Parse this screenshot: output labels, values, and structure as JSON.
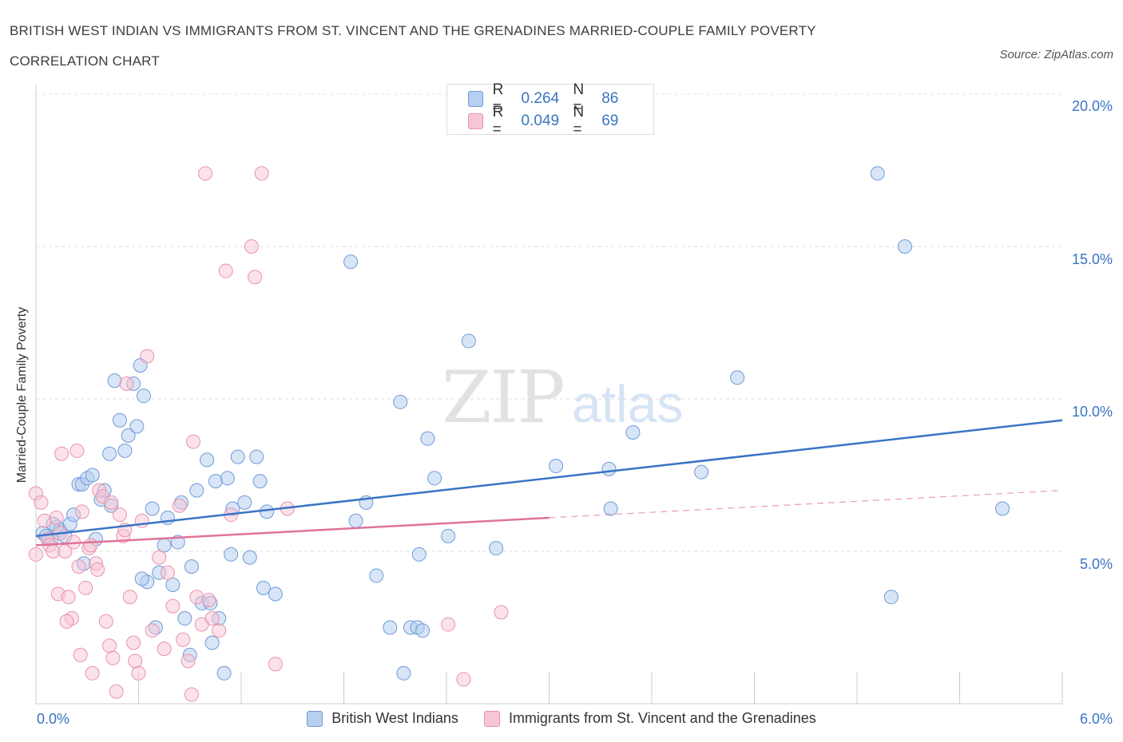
{
  "title": "BRITISH WEST INDIAN VS IMMIGRANTS FROM ST. VINCENT AND THE GRENADINES MARRIED-COUPLE FAMILY POVERTY CORRELATION CHART",
  "source": "Source: ZipAtlas.com",
  "watermark": {
    "zip": "ZIP",
    "atlas": "atlas"
  },
  "colors": {
    "blue": "#3a74c4",
    "blue_fill": "#b7cff0",
    "pink": "#e07399",
    "pink_fill": "#f7c6d5",
    "grid": "#dddddd"
  },
  "legend": {
    "r_label": "R =",
    "n_label": "N =",
    "rows": [
      {
        "r": "0.264",
        "n": "86"
      },
      {
        "r": "0.049",
        "n": "69"
      }
    ]
  },
  "chart_data": {
    "type": "scatter",
    "xlabel": "",
    "ylabel": "Married-Couple Family Poverty",
    "xlim": [
      0,
      6
    ],
    "ylim": [
      0,
      20
    ],
    "x_ticks": [
      "0.0%",
      "6.0%"
    ],
    "y_ticks": [
      "5.0%",
      "10.0%",
      "15.0%",
      "20.0%"
    ],
    "y_tick_values": [
      5,
      10,
      15,
      20
    ],
    "grid": true,
    "legend_position": "bottom",
    "series": [
      {
        "name": "British West Indians",
        "trend": {
          "x0": 0.0,
          "y0": 5.5,
          "x1": 6.0,
          "y1": 9.3,
          "dash_from": null
        },
        "points": [
          [
            0.04,
            5.6
          ],
          [
            0.07,
            5.4
          ],
          [
            0.09,
            5.4
          ],
          [
            0.12,
            5.8
          ],
          [
            0.14,
            5.7
          ],
          [
            0.17,
            5.5
          ],
          [
            0.2,
            5.9
          ],
          [
            0.22,
            6.2
          ],
          [
            0.25,
            7.2
          ],
          [
            0.27,
            7.2
          ],
          [
            0.3,
            7.4
          ],
          [
            0.33,
            7.5
          ],
          [
            0.35,
            5.4
          ],
          [
            0.38,
            6.7
          ],
          [
            0.4,
            7.0
          ],
          [
            0.43,
            8.2
          ],
          [
            0.46,
            10.6
          ],
          [
            0.49,
            9.3
          ],
          [
            0.52,
            8.3
          ],
          [
            0.54,
            8.8
          ],
          [
            0.57,
            10.5
          ],
          [
            0.59,
            9.1
          ],
          [
            0.61,
            11.1
          ],
          [
            0.63,
            10.1
          ],
          [
            0.65,
            4.0
          ],
          [
            0.68,
            6.4
          ],
          [
            0.7,
            2.5
          ],
          [
            0.72,
            4.3
          ],
          [
            0.75,
            5.2
          ],
          [
            0.77,
            6.1
          ],
          [
            0.8,
            3.9
          ],
          [
            0.83,
            5.3
          ],
          [
            0.85,
            6.6
          ],
          [
            0.87,
            2.8
          ],
          [
            0.9,
            1.6
          ],
          [
            0.91,
            4.5
          ],
          [
            0.94,
            7.0
          ],
          [
            0.97,
            3.3
          ],
          [
            1.0,
            8.0
          ],
          [
            1.02,
            3.3
          ],
          [
            1.03,
            2.0
          ],
          [
            1.05,
            7.3
          ],
          [
            1.07,
            2.8
          ],
          [
            1.1,
            1.0
          ],
          [
            1.12,
            7.4
          ],
          [
            1.14,
            4.9
          ],
          [
            1.15,
            6.4
          ],
          [
            1.18,
            8.1
          ],
          [
            1.22,
            6.6
          ],
          [
            1.25,
            4.8
          ],
          [
            1.29,
            8.1
          ],
          [
            1.31,
            7.3
          ],
          [
            1.33,
            3.8
          ],
          [
            1.35,
            6.3
          ],
          [
            1.84,
            14.5
          ],
          [
            1.87,
            6.0
          ],
          [
            1.93,
            6.6
          ],
          [
            1.99,
            4.2
          ],
          [
            2.07,
            2.5
          ],
          [
            2.13,
            9.9
          ],
          [
            2.15,
            1.0
          ],
          [
            2.19,
            2.5
          ],
          [
            2.23,
            2.5
          ],
          [
            2.24,
            4.9
          ],
          [
            2.29,
            8.7
          ],
          [
            2.33,
            7.4
          ],
          [
            2.41,
            5.5
          ],
          [
            2.53,
            11.9
          ],
          [
            2.69,
            5.1
          ],
          [
            3.04,
            7.8
          ],
          [
            3.35,
            7.7
          ],
          [
            3.36,
            6.4
          ],
          [
            3.49,
            8.9
          ],
          [
            3.89,
            7.6
          ],
          [
            4.1,
            10.7
          ],
          [
            4.92,
            17.4
          ],
          [
            5.0,
            3.5
          ],
          [
            5.08,
            15.0
          ],
          [
            5.65,
            6.4
          ],
          [
            0.06,
            5.5
          ],
          [
            0.1,
            5.9
          ],
          [
            0.28,
            4.6
          ],
          [
            0.44,
            6.5
          ],
          [
            0.62,
            4.1
          ],
          [
            1.4,
            3.6
          ],
          [
            2.26,
            2.4
          ]
        ]
      },
      {
        "name": "Immigrants from St. Vincent and the Grenadines",
        "trend": {
          "x0": 0.0,
          "y0": 5.2,
          "x1": 6.0,
          "y1": 7.0,
          "dash_from": 3.0
        },
        "points": [
          [
            0.0,
            6.9
          ],
          [
            0.0,
            4.9
          ],
          [
            0.03,
            6.6
          ],
          [
            0.05,
            6.0
          ],
          [
            0.07,
            5.4
          ],
          [
            0.08,
            5.2
          ],
          [
            0.1,
            5.0
          ],
          [
            0.12,
            6.1
          ],
          [
            0.13,
            3.6
          ],
          [
            0.14,
            5.6
          ],
          [
            0.15,
            8.2
          ],
          [
            0.17,
            5.0
          ],
          [
            0.19,
            3.5
          ],
          [
            0.21,
            2.8
          ],
          [
            0.22,
            5.3
          ],
          [
            0.24,
            8.3
          ],
          [
            0.25,
            4.5
          ],
          [
            0.27,
            6.3
          ],
          [
            0.29,
            3.8
          ],
          [
            0.31,
            5.1
          ],
          [
            0.33,
            1.0
          ],
          [
            0.35,
            4.6
          ],
          [
            0.37,
            7.0
          ],
          [
            0.39,
            6.8
          ],
          [
            0.41,
            2.7
          ],
          [
            0.43,
            1.9
          ],
          [
            0.45,
            1.5
          ],
          [
            0.47,
            0.4
          ],
          [
            0.49,
            6.2
          ],
          [
            0.51,
            5.5
          ],
          [
            0.53,
            10.5
          ],
          [
            0.55,
            3.5
          ],
          [
            0.57,
            2.0
          ],
          [
            0.6,
            1.0
          ],
          [
            0.62,
            6.0
          ],
          [
            0.65,
            11.4
          ],
          [
            0.68,
            2.4
          ],
          [
            0.72,
            4.8
          ],
          [
            0.75,
            1.8
          ],
          [
            0.77,
            4.3
          ],
          [
            0.8,
            3.2
          ],
          [
            0.84,
            6.5
          ],
          [
            0.86,
            2.1
          ],
          [
            0.89,
            1.4
          ],
          [
            0.91,
            0.3
          ],
          [
            0.92,
            8.6
          ],
          [
            0.94,
            3.5
          ],
          [
            0.97,
            2.6
          ],
          [
            0.99,
            17.4
          ],
          [
            1.01,
            3.4
          ],
          [
            1.03,
            2.8
          ],
          [
            1.07,
            2.4
          ],
          [
            1.11,
            14.2
          ],
          [
            1.14,
            6.2
          ],
          [
            1.26,
            15.0
          ],
          [
            1.28,
            14.0
          ],
          [
            1.32,
            17.4
          ],
          [
            1.4,
            1.3
          ],
          [
            1.47,
            6.4
          ],
          [
            2.41,
            2.6
          ],
          [
            2.5,
            0.8
          ],
          [
            2.72,
            3.0
          ],
          [
            0.32,
            5.2
          ],
          [
            0.44,
            6.6
          ],
          [
            0.52,
            5.7
          ],
          [
            0.36,
            4.4
          ],
          [
            0.18,
            2.7
          ],
          [
            0.26,
            1.6
          ],
          [
            0.58,
            1.4
          ]
        ]
      }
    ]
  }
}
